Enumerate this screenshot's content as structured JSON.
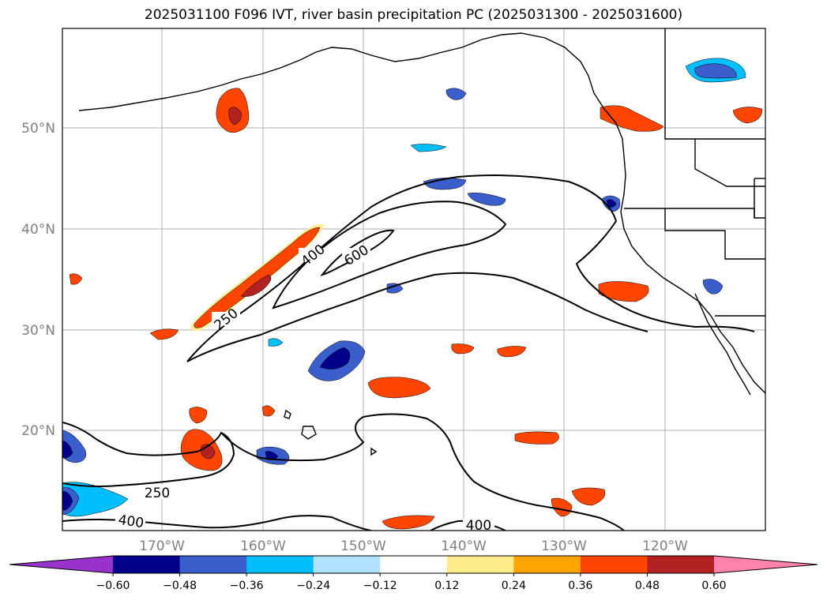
{
  "title": "2025031100 F096 IVT, river basin precipitation PC (2025031300 - 2025031600)",
  "map": {
    "lon_labels": [
      "170°W",
      "160°W",
      "150°W",
      "140°W",
      "130°W",
      "120°W"
    ],
    "lat_labels": [
      "50°N",
      "40°N",
      "30°N",
      "20°N"
    ],
    "contour_labels": [
      "250",
      "400",
      "600",
      "250",
      "400",
      "400"
    ]
  },
  "colorbar": {
    "colors": [
      "#9932cc",
      "#00008b",
      "#3a5fcd",
      "#00bfff",
      "#b0e2ff",
      "#ffffff",
      "#ffec8b",
      "#ffa500",
      "#ff4500",
      "#b22222",
      "#ff82ab"
    ],
    "tick_labels": [
      "−0.60",
      "−0.48",
      "−0.36",
      "−0.24",
      "−0.12",
      "0.12",
      "0.24",
      "0.36",
      "0.48",
      "0.60"
    ]
  }
}
